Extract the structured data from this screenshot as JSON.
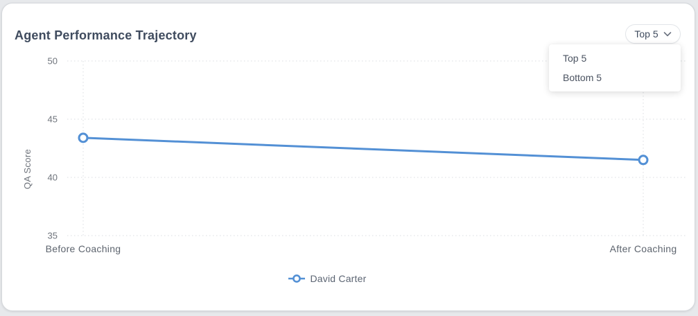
{
  "card": {
    "title": "Agent Performance Trajectory"
  },
  "controls": {
    "range_select": {
      "value": "Top 5",
      "open": true,
      "options": [
        {
          "label": "Top 5"
        },
        {
          "label": "Bottom 5"
        }
      ]
    }
  },
  "chart_data": {
    "type": "line",
    "title": "Agent Performance Trajectory",
    "categories": [
      "Before Coaching",
      "After Coaching"
    ],
    "series": [
      {
        "name": "David Carter",
        "values": [
          43.4,
          41.5
        ],
        "color": "#5390d5",
        "marker": "empty-circle"
      }
    ],
    "xlabel": "",
    "ylabel": "QA Score",
    "ylim": [
      35,
      50
    ],
    "yticks": [
      35,
      40,
      45,
      50
    ],
    "grid": "dotted",
    "legend_position": "bottom"
  }
}
